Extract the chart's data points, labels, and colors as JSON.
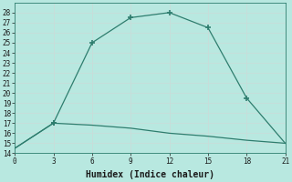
{
  "xlabel": "Humidex (Indice chaleur)",
  "line1_x": [
    0,
    3,
    6,
    9,
    12,
    15,
    18,
    21
  ],
  "line1_y": [
    14.5,
    17.0,
    25.0,
    27.5,
    28.0,
    26.5,
    19.5,
    15.0
  ],
  "line1_marker_x": [
    3,
    6,
    9,
    12,
    15,
    18
  ],
  "line1_marker_y": [
    17.0,
    25.0,
    27.5,
    28.0,
    26.5,
    19.5
  ],
  "line2_x": [
    0,
    3,
    6,
    9,
    12,
    15,
    18,
    21
  ],
  "line2_y": [
    14.5,
    17.0,
    16.8,
    16.5,
    16.0,
    15.7,
    15.3,
    15.0
  ],
  "line2_marker_x": [
    3
  ],
  "line2_marker_y": [
    17.0
  ],
  "line_color": "#2e7d6e",
  "bg_color": "#b8e8e0",
  "grid_color": "#c8ddd9",
  "ylim": [
    14,
    29
  ],
  "xlim": [
    0,
    21
  ],
  "yticks": [
    14,
    15,
    16,
    17,
    18,
    19,
    20,
    21,
    22,
    23,
    24,
    25,
    26,
    27,
    28
  ],
  "xticks": [
    0,
    3,
    6,
    9,
    12,
    15,
    18,
    21
  ],
  "marker": "+",
  "markersize": 5,
  "linewidth": 0.9,
  "xlabel_fontsize": 7
}
